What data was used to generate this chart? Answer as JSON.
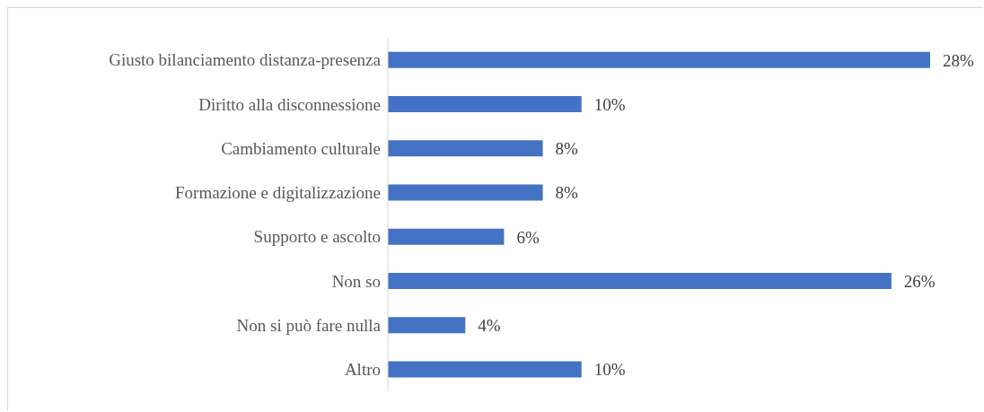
{
  "chart_data": {
    "type": "bar",
    "orientation": "horizontal",
    "categories": [
      "Giusto bilanciamento distanza-presenza",
      "Diritto alla disconnessione",
      "Cambiamento culturale",
      "Formazione e digitalizzazione",
      "Supporto e ascolto",
      "Non so",
      "Non si può fare nulla",
      "Altro"
    ],
    "values": [
      28,
      10,
      8,
      8,
      6,
      26,
      4,
      10
    ],
    "value_labels": [
      "28%",
      "10%",
      "8%",
      "8%",
      "6%",
      "26%",
      "4%",
      "10%"
    ],
    "color": "#4472c4"
  }
}
